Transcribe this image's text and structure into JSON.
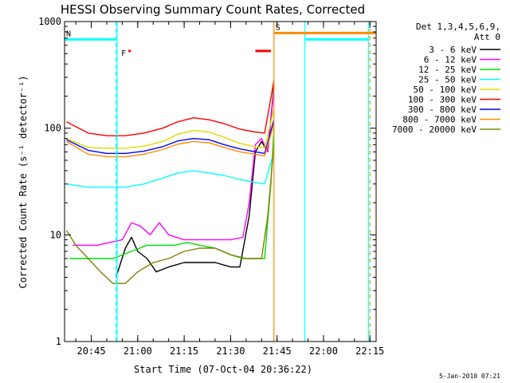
{
  "chart_data": {
    "type": "line",
    "title": "HESSI Observing Summary Count Rates, Corrected",
    "xlabel": "Start Time (07-Oct-04 20:36:22)",
    "ylabel": "Corrected Count Rate (s⁻¹ detector⁻¹)",
    "ylim": [
      1,
      1000
    ],
    "yscale": "log",
    "xlim": [
      "20:36:22",
      "22:17:00"
    ],
    "x_ticks": [
      "20:45",
      "21:00",
      "21:15",
      "21:30",
      "21:45",
      "22:00",
      "22:15"
    ],
    "y_ticks": [
      "1",
      "10",
      "100",
      "1000"
    ],
    "grid": false,
    "legend_position": "right",
    "legend_header": [
      "Det 1,3,4,5,6,9,",
      "Att 0"
    ],
    "flag_labels": {
      "night": "N",
      "flare": "F",
      "saa": "S"
    },
    "series": [
      {
        "name": "3 - 6 keV",
        "color": "#000000",
        "x": [
          "20:53",
          "20:56",
          "20:58",
          "21:00",
          "21:03",
          "21:06",
          "21:10",
          "21:15",
          "21:20",
          "21:25",
          "21:30",
          "21:33",
          "21:36",
          "21:38",
          "21:40",
          "21:42",
          "21:44"
        ],
        "values": [
          4.0,
          7.5,
          9.5,
          7.0,
          6.0,
          4.5,
          5.0,
          5.5,
          5.5,
          5.5,
          5.0,
          5.0,
          15,
          60,
          75,
          60,
          250
        ]
      },
      {
        "name": "6 - 12 keV",
        "color": "#ff00ff",
        "x": [
          "20:39",
          "20:43",
          "20:47",
          "20:51",
          "20:55",
          "20:58",
          "21:01",
          "21:04",
          "21:07",
          "21:10",
          "21:15",
          "21:20",
          "21:25",
          "21:30",
          "21:34",
          "21:36",
          "21:38",
          "21:40",
          "21:42",
          "21:44"
        ],
        "values": [
          8,
          8,
          8,
          8.5,
          9,
          13,
          12,
          10,
          13,
          10,
          9,
          9,
          9,
          9,
          9.5,
          20,
          70,
          80,
          60,
          230
        ]
      },
      {
        "name": "12 - 25 keV",
        "color": "#00dd00",
        "x": [
          "20:38",
          "20:45",
          "20:52",
          "20:58",
          "21:03",
          "21:08",
          "21:12",
          "21:16",
          "21:20",
          "21:25",
          "21:30",
          "21:34",
          "21:38",
          "21:41",
          "21:43",
          "21:44"
        ],
        "values": [
          6,
          6,
          6,
          7,
          8,
          8,
          8,
          8.5,
          8,
          7.5,
          6.5,
          6,
          6,
          6,
          30,
          100
        ]
      },
      {
        "name": "25 - 50 keV",
        "color": "#00ffff",
        "x": [
          "20:37",
          "20:44",
          "20:50",
          "20:56",
          "21:02",
          "21:08",
          "21:13",
          "21:18",
          "21:23",
          "21:28",
          "21:33",
          "21:38",
          "21:41",
          "21:44"
        ],
        "values": [
          30,
          28,
          28,
          28,
          30,
          34,
          38,
          40,
          38,
          36,
          33,
          31,
          30,
          60
        ]
      },
      {
        "name": "50 - 100 keV",
        "color": "#dddd00",
        "x": [
          "20:37",
          "20:44",
          "20:50",
          "20:56",
          "21:02",
          "21:08",
          "21:13",
          "21:18",
          "21:23",
          "21:28",
          "21:33",
          "21:38",
          "21:41",
          "21:44"
        ],
        "values": [
          80,
          66,
          65,
          65,
          68,
          75,
          88,
          95,
          92,
          82,
          72,
          67,
          66,
          150
        ]
      },
      {
        "name": "100 - 300 keV",
        "color": "#ff0000",
        "x": [
          "20:37",
          "20:44",
          "20:50",
          "20:56",
          "21:02",
          "21:08",
          "21:13",
          "21:18",
          "21:23",
          "21:28",
          "21:33",
          "21:38",
          "21:41",
          "21:44"
        ],
        "values": [
          115,
          90,
          85,
          85,
          90,
          100,
          115,
          125,
          120,
          110,
          98,
          92,
          90,
          280
        ]
      },
      {
        "name": "300 - 800 keV",
        "color": "#0000ff",
        "x": [
          "20:37",
          "20:44",
          "20:50",
          "20:56",
          "21:02",
          "21:08",
          "21:13",
          "21:18",
          "21:23",
          "21:28",
          "21:33",
          "21:38",
          "21:41",
          "21:44"
        ],
        "values": [
          78,
          62,
          58,
          58,
          61,
          67,
          76,
          80,
          78,
          70,
          64,
          60,
          58,
          120
        ]
      },
      {
        "name": "800 - 7000 keV",
        "color": "#ff8c00",
        "x": [
          "20:37",
          "20:44",
          "20:50",
          "20:56",
          "21:02",
          "21:08",
          "21:13",
          "21:18",
          "21:23",
          "21:28",
          "21:33",
          "21:38",
          "21:41",
          "21:44"
        ],
        "values": [
          75,
          57,
          54,
          54,
          57,
          63,
          71,
          75,
          73,
          66,
          60,
          57,
          55,
          110
        ]
      },
      {
        "name": "7000 - 20000 keV",
        "color": "#808000",
        "x": [
          "20:37",
          "20:40",
          "20:44",
          "20:48",
          "20:52",
          "20:56",
          "21:00",
          "21:05",
          "21:10",
          "21:15",
          "21:20",
          "21:25",
          "21:30",
          "21:35",
          "21:40",
          "21:42",
          "21:44"
        ],
        "values": [
          11,
          8,
          6,
          4.5,
          3.5,
          3.5,
          4.5,
          5.5,
          6,
          7,
          7.5,
          7.5,
          6.5,
          6,
          6,
          15,
          70
        ]
      }
    ],
    "flag_bars": [
      {
        "label": "N",
        "color": "#00ffff",
        "x_start": "20:36:22",
        "x_end": "20:53:00",
        "level": 680
      },
      {
        "label": "F",
        "color": "#ff0000",
        "x_start": "20:57:00",
        "x_end": "20:57:45",
        "level": 530
      },
      {
        "label": "",
        "color": "#ff0000",
        "x_start": "21:38:00",
        "x_end": "21:43:00",
        "level": 530
      },
      {
        "label": "S",
        "color": "#ff8c00",
        "x_start": "21:44:00",
        "x_end": "22:17:00",
        "level": 780
      },
      {
        "label": "",
        "color": "#00ffff",
        "x_start": "21:54:00",
        "x_end": "22:14:30",
        "level": 680
      }
    ],
    "markers": [
      {
        "x": "20:53:00",
        "color": "#00ffff",
        "style": "dashed"
      },
      {
        "x": "20:53:20",
        "color": "#00ffff",
        "style": "solid"
      },
      {
        "x": "21:44:00",
        "color": "#ff8c00",
        "style": "solid"
      },
      {
        "x": "21:54:00",
        "color": "#00ffff",
        "style": "solid"
      },
      {
        "x": "22:14:30",
        "color": "#00ffff",
        "style": "solid"
      },
      {
        "x": "22:15:00",
        "color": "#ff8c00",
        "style": "dashed"
      }
    ]
  },
  "timestamp": "5-Jan-2010 07:21"
}
